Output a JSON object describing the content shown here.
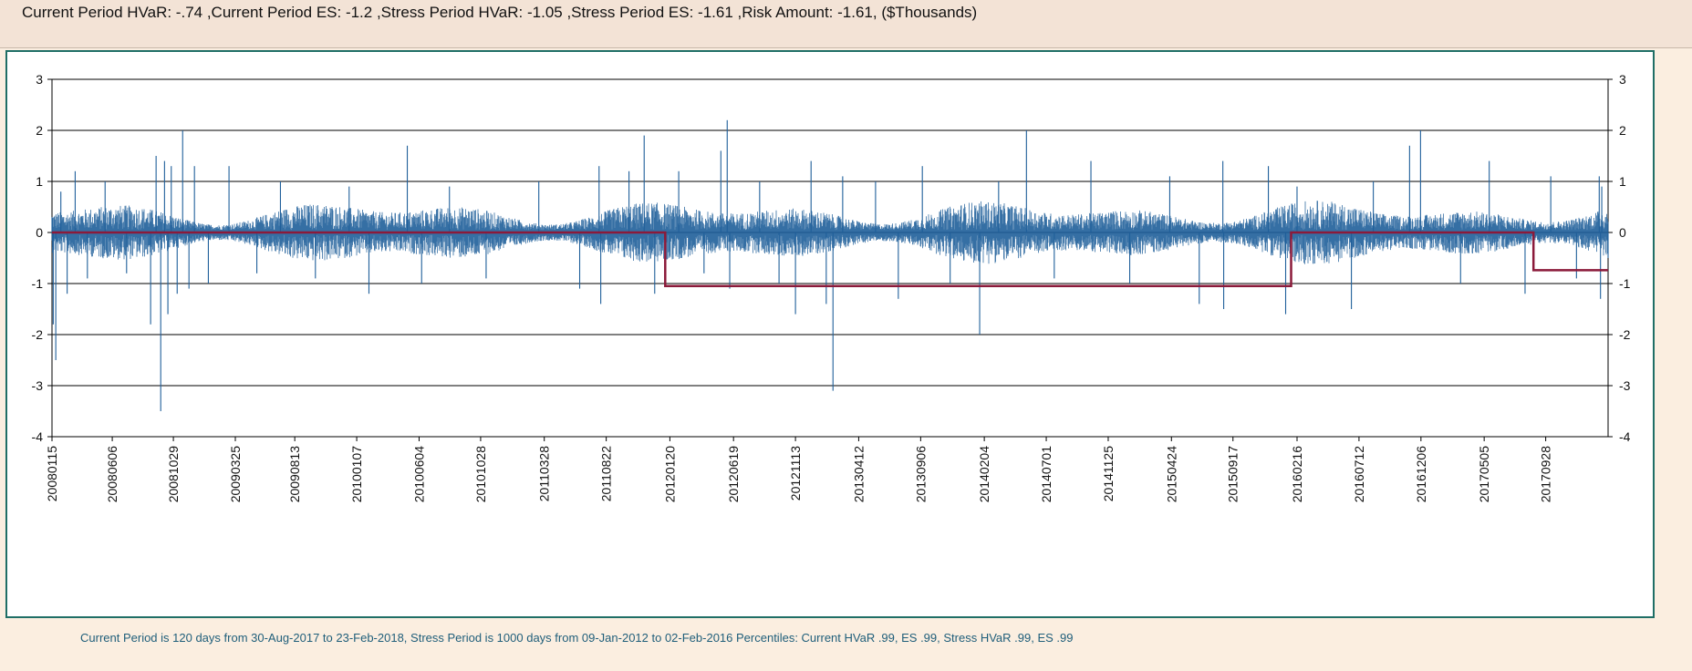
{
  "header": {
    "summary": "Current Period HVaR: -.74  ,Current Period ES: -1.2  ,Stress Period HVaR: -1.05  ,Stress Period ES: -1.61  ,Risk Amount: -1.61, ($Thousands)"
  },
  "footer": {
    "note": "Current Period is 120 days from 30-Aug-2017 to 23-Feb-2018, Stress Period is 1000 days from 09-Jan-2012 to 02-Feb-2016   Percentiles:  Current HVaR .99,   ES .99,   Stress HVaR .99,   ES .99"
  },
  "colors": {
    "pnl_series": "#1f5f9a",
    "var_line": "#8b1a3a",
    "grid": "#000000",
    "frame": "#1f6e66",
    "header_bg": "#f3e3d6",
    "page_bg": "#fbeee0"
  },
  "chart_data": {
    "type": "line",
    "title": "",
    "xlabel": "",
    "ylabel": "",
    "ylim": [
      -4,
      3
    ],
    "y_ticks": [
      "3",
      "2",
      "1",
      "0",
      "-1",
      "-2",
      "-3",
      "-4"
    ],
    "grid": "horizontal",
    "x_ticks": [
      "20080115",
      "20080606",
      "20081029",
      "20090325",
      "20090813",
      "20100107",
      "20100604",
      "20101028",
      "20110328",
      "20110822",
      "20120120",
      "20120619",
      "20121113",
      "20130412",
      "20130906",
      "20140204",
      "20140701",
      "20141125",
      "20150424",
      "20150917",
      "20160216",
      "20160712",
      "20161206",
      "20170505",
      "20170928"
    ],
    "x_range": [
      "2008-01-15",
      "2018-02-23"
    ],
    "series": [
      {
        "name": "",
        "style": "daily P&L spikes",
        "points": [
          [
            "2008-01-15",
            0.3
          ],
          [
            "2008-01-18",
            -1.8
          ],
          [
            "2008-01-24",
            -2.5
          ],
          [
            "2008-02-05",
            0.8
          ],
          [
            "2008-02-20",
            -1.2
          ],
          [
            "2008-03-10",
            1.2
          ],
          [
            "2008-04-08",
            -0.9
          ],
          [
            "2008-05-20",
            1.0
          ],
          [
            "2008-07-10",
            -0.8
          ],
          [
            "2008-09-05",
            -1.8
          ],
          [
            "2008-09-18",
            1.5
          ],
          [
            "2008-09-29",
            -3.5
          ],
          [
            "2008-10-08",
            1.4
          ],
          [
            "2008-10-16",
            -1.6
          ],
          [
            "2008-10-24",
            1.3
          ],
          [
            "2008-11-07",
            -1.2
          ],
          [
            "2008-11-20",
            2.0
          ],
          [
            "2008-12-05",
            -1.1
          ],
          [
            "2008-12-18",
            1.3
          ],
          [
            "2009-01-20",
            -1.0
          ],
          [
            "2009-03-10",
            1.3
          ],
          [
            "2009-05-15",
            -0.8
          ],
          [
            "2009-07-10",
            1.0
          ],
          [
            "2009-10-01",
            -0.9
          ],
          [
            "2009-12-20",
            0.9
          ],
          [
            "2010-02-05",
            -1.2
          ],
          [
            "2010-05-07",
            1.7
          ],
          [
            "2010-06-10",
            -1.0
          ],
          [
            "2010-08-15",
            0.9
          ],
          [
            "2010-11-10",
            -0.9
          ],
          [
            "2011-03-15",
            1.0
          ],
          [
            "2011-06-20",
            -1.1
          ],
          [
            "2011-08-05",
            1.3
          ],
          [
            "2011-08-09",
            -1.4
          ],
          [
            "2011-10-15",
            1.2
          ],
          [
            "2011-11-20",
            1.9
          ],
          [
            "2011-12-15",
            -1.2
          ],
          [
            "2012-02-10",
            1.2
          ],
          [
            "2012-04-10",
            -0.8
          ],
          [
            "2012-05-20",
            1.6
          ],
          [
            "2012-06-04",
            2.2
          ],
          [
            "2012-06-10",
            -1.1
          ],
          [
            "2012-08-20",
            1.0
          ],
          [
            "2012-10-05",
            -1.0
          ],
          [
            "2012-11-13",
            -1.6
          ],
          [
            "2012-12-20",
            1.4
          ],
          [
            "2013-01-25",
            -1.4
          ],
          [
            "2013-02-10",
            -3.1
          ],
          [
            "2013-03-05",
            1.1
          ],
          [
            "2013-05-22",
            1.0
          ],
          [
            "2013-07-15",
            -1.3
          ],
          [
            "2013-09-10",
            1.3
          ],
          [
            "2013-11-15",
            -1.0
          ],
          [
            "2014-01-24",
            -2.0
          ],
          [
            "2014-03-10",
            1.0
          ],
          [
            "2014-05-15",
            2.0
          ],
          [
            "2014-07-20",
            -0.9
          ],
          [
            "2014-10-15",
            1.4
          ],
          [
            "2015-01-15",
            -1.0
          ],
          [
            "2015-04-20",
            1.1
          ],
          [
            "2015-06-29",
            -1.4
          ],
          [
            "2015-08-24",
            1.4
          ],
          [
            "2015-08-26",
            -1.5
          ],
          [
            "2015-12-10",
            1.3
          ],
          [
            "2016-01-20",
            -1.6
          ],
          [
            "2016-02-16",
            0.9
          ],
          [
            "2016-06-24",
            -1.5
          ],
          [
            "2016-08-15",
            1.0
          ],
          [
            "2016-11-09",
            1.7
          ],
          [
            "2016-12-05",
            2.0
          ],
          [
            "2017-03-10",
            -1.0
          ],
          [
            "2017-05-17",
            1.4
          ],
          [
            "2017-08-10",
            -1.2
          ],
          [
            "2017-10-10",
            1.1
          ],
          [
            "2017-12-10",
            -0.9
          ],
          [
            "2018-02-02",
            1.1
          ],
          [
            "2018-02-05",
            -1.3
          ],
          [
            "2018-02-08",
            0.9
          ],
          [
            "2018-02-23",
            -0.5
          ]
        ]
      },
      {
        "name": "",
        "style": "step",
        "points": [
          [
            "2008-01-15",
            0
          ],
          [
            "2012-01-09",
            0
          ],
          [
            "2012-01-09",
            -1.05
          ],
          [
            "2016-02-02",
            -1.05
          ],
          [
            "2016-02-02",
            0
          ],
          [
            "2017-08-30",
            0
          ],
          [
            "2017-08-30",
            -0.74
          ],
          [
            "2018-02-23",
            -0.74
          ]
        ]
      }
    ]
  }
}
